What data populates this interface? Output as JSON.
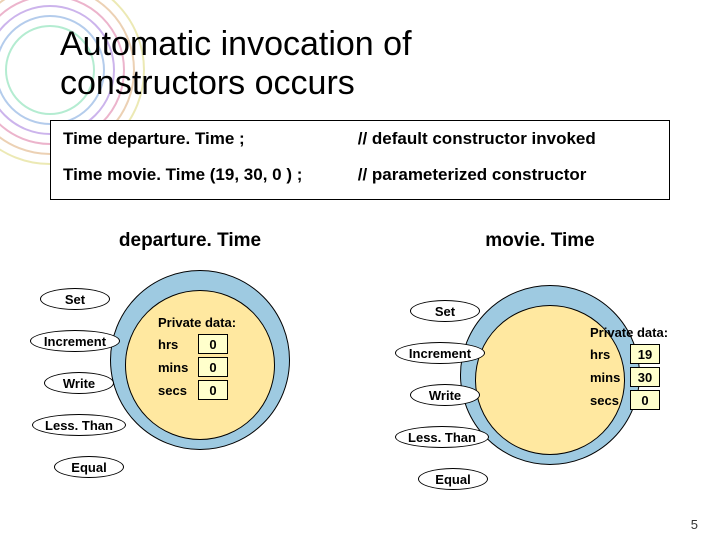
{
  "title_line1": "Automatic invocation of",
  "title_line2": "constructors occurs",
  "code": {
    "line1_left": "Time   departure. Time ;",
    "line1_right": "// default constructor invoked",
    "line2_left": "Time   movie. Time (19, 30, 0 ) ;",
    "line2_right": "// parameterized constructor"
  },
  "left": {
    "title": "departure. Time",
    "circle_top_color": "#9ecae1",
    "circle_bottom_color": "#ffe8a0",
    "ovals": {
      "set": "Set",
      "increment": "Increment",
      "write": "Write",
      "lessthan": "Less. Than",
      "equal": "Equal"
    },
    "private_label": "Private data:",
    "fields": {
      "hrs": "hrs",
      "mins": "mins",
      "secs": "secs"
    },
    "values": {
      "hrs": "0",
      "mins": "0",
      "secs": "0"
    }
  },
  "right": {
    "title": "movie. Time",
    "circle_top_color": "#9ecae1",
    "circle_bottom_color": "#ffe8a0",
    "ovals": {
      "set": "Set",
      "increment": "Increment",
      "write": "Write",
      "lessthan": "Less. Than",
      "equal": "Equal"
    },
    "private_label": "Private data:",
    "fields": {
      "hrs": "hrs",
      "mins": "mins",
      "secs": "secs"
    },
    "values": {
      "hrs": "19",
      "mins": "30",
      "secs": "0"
    }
  },
  "slide_number": "5",
  "arcs": {
    "colors": [
      "#d9d36a",
      "#d9a46a",
      "#d96a9a",
      "#9a6ad9",
      "#6a9ad9",
      "#6ad9a4"
    ],
    "radii": [
      94,
      84,
      74,
      64,
      54,
      44
    ]
  }
}
